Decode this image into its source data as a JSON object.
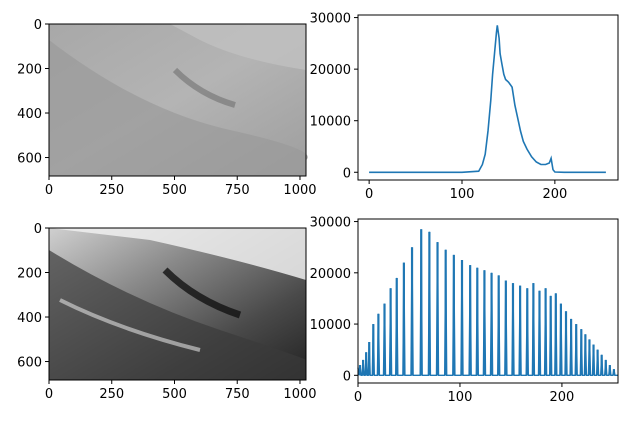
{
  "chart_data": [
    {
      "type": "image",
      "panel": "original-image",
      "xlim": [
        0,
        1024
      ],
      "ylim": [
        0,
        683
      ],
      "xticks": [
        0,
        250,
        500,
        750,
        1000
      ],
      "yticks": [
        0,
        200,
        400,
        600
      ],
      "xtick_labels": [
        "0",
        "250",
        "500",
        "750",
        "1000"
      ],
      "ytick_labels": [
        "0",
        "200",
        "400",
        "600"
      ],
      "colormap": "gray",
      "description_contrast": "low"
    },
    {
      "type": "line",
      "panel": "original-histogram",
      "color": "#1f77b4",
      "xlim": [
        -12,
        268
      ],
      "ylim": [
        -1500,
        30500
      ],
      "xticks": [
        0,
        100,
        200
      ],
      "yticks": [
        0,
        10000,
        20000,
        30000
      ],
      "xtick_labels": [
        "0",
        "100",
        "200"
      ],
      "ytick_labels": [
        "0",
        "10000",
        "20000",
        "30000"
      ],
      "x": [
        0,
        100,
        118,
        122,
        125,
        128,
        131,
        133,
        135,
        137,
        138,
        140,
        141,
        143,
        145,
        147,
        150,
        152,
        154,
        157,
        160,
        163,
        166,
        170,
        175,
        180,
        185,
        190,
        194,
        196,
        198,
        200,
        210,
        230,
        255
      ],
      "y": [
        0,
        0,
        200,
        1500,
        3500,
        8000,
        14000,
        19000,
        23000,
        27000,
        28500,
        26000,
        23000,
        21000,
        19000,
        18000,
        17500,
        17000,
        16500,
        13000,
        10500,
        8000,
        6000,
        4500,
        3000,
        2000,
        1500,
        1500,
        1800,
        2700,
        500,
        50,
        0,
        0,
        0
      ]
    },
    {
      "type": "image",
      "panel": "equalized-image",
      "xlim": [
        0,
        1024
      ],
      "ylim": [
        0,
        683
      ],
      "xticks": [
        0,
        250,
        500,
        750,
        1000
      ],
      "yticks": [
        0,
        200,
        400,
        600
      ],
      "xtick_labels": [
        "0",
        "250",
        "500",
        "750",
        "1000"
      ],
      "ytick_labels": [
        "0",
        "200",
        "400",
        "600"
      ],
      "colormap": "gray",
      "description_contrast": "high"
    },
    {
      "type": "line",
      "panel": "equalized-histogram",
      "color": "#1f77b4",
      "xlim": [
        0,
        255
      ],
      "ylim": [
        -1500,
        30500
      ],
      "xticks": [
        0,
        100,
        200
      ],
      "yticks": [
        0,
        10000,
        20000,
        30000
      ],
      "xtick_labels": [
        "0",
        "100",
        "200"
      ],
      "ytick_labels": [
        "0",
        "10000",
        "20000",
        "30000"
      ],
      "spikes": [
        {
          "x": 2,
          "y": 2000
        },
        {
          "x": 5,
          "y": 3000
        },
        {
          "x": 8,
          "y": 4500
        },
        {
          "x": 11,
          "y": 6500
        },
        {
          "x": 15,
          "y": 10000
        },
        {
          "x": 20,
          "y": 12000
        },
        {
          "x": 26,
          "y": 14000
        },
        {
          "x": 32,
          "y": 17000
        },
        {
          "x": 38,
          "y": 19000
        },
        {
          "x": 45,
          "y": 22000
        },
        {
          "x": 53,
          "y": 25000
        },
        {
          "x": 62,
          "y": 28500
        },
        {
          "x": 70,
          "y": 28000
        },
        {
          "x": 78,
          "y": 26000
        },
        {
          "x": 86,
          "y": 24500
        },
        {
          "x": 94,
          "y": 23500
        },
        {
          "x": 102,
          "y": 22500
        },
        {
          "x": 110,
          "y": 21500
        },
        {
          "x": 117,
          "y": 21000
        },
        {
          "x": 124,
          "y": 20500
        },
        {
          "x": 131,
          "y": 20000
        },
        {
          "x": 138,
          "y": 19500
        },
        {
          "x": 145,
          "y": 18500
        },
        {
          "x": 152,
          "y": 18000
        },
        {
          "x": 159,
          "y": 17500
        },
        {
          "x": 166,
          "y": 17000
        },
        {
          "x": 172,
          "y": 18000
        },
        {
          "x": 178,
          "y": 16500
        },
        {
          "x": 184,
          "y": 17000
        },
        {
          "x": 189,
          "y": 15500
        },
        {
          "x": 194,
          "y": 16000
        },
        {
          "x": 199,
          "y": 14000
        },
        {
          "x": 204,
          "y": 12500
        },
        {
          "x": 209,
          "y": 11000
        },
        {
          "x": 214,
          "y": 10000
        },
        {
          "x": 219,
          "y": 9000
        },
        {
          "x": 223,
          "y": 8000
        },
        {
          "x": 227,
          "y": 7000
        },
        {
          "x": 231,
          "y": 6000
        },
        {
          "x": 235,
          "y": 5000
        },
        {
          "x": 239,
          "y": 4000
        },
        {
          "x": 243,
          "y": 3000
        },
        {
          "x": 247,
          "y": 2000
        },
        {
          "x": 251,
          "y": 1200
        }
      ]
    }
  ]
}
